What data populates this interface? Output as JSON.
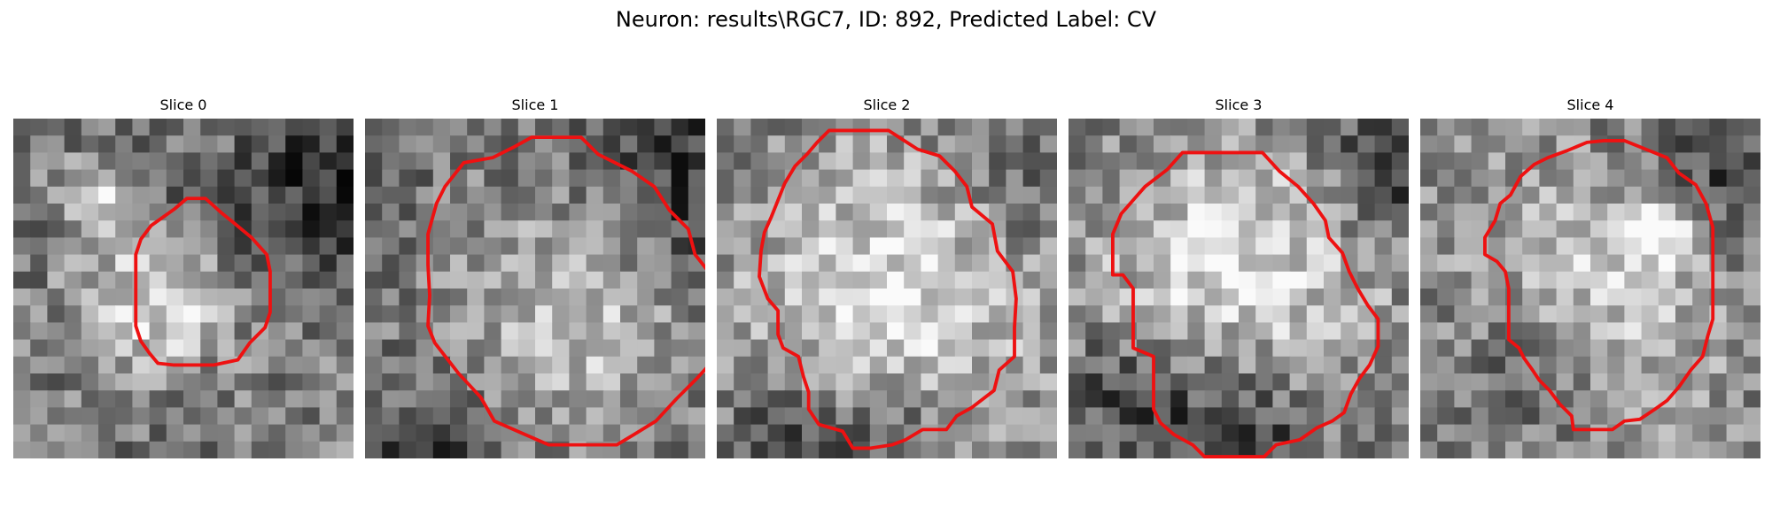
{
  "figure": {
    "title": "Neuron: results\\RGC7, ID: 892, Predicted Label: CV"
  },
  "colors": {
    "outline": "#ee1111"
  },
  "slices": [
    {
      "title": "Slice 0",
      "seed": 11,
      "base": 120,
      "contrast": 110,
      "bright": [
        [
          4.6,
          4.6,
          1.3,
          1.4
        ],
        [
          8.4,
          10.6,
          3.0,
          1.5
        ],
        [
          24.0,
          16.0,
          3.0,
          1.2
        ]
      ],
      "dark": [
        [
          19.0,
          4.0,
          3.2,
          1.1
        ],
        [
          11.5,
          6.5,
          3.2,
          0.45
        ],
        [
          20.0,
          28.0,
          3.5,
          0.6
        ]
      ],
      "outline": [
        [
          10.2,
          4.7
        ],
        [
          11.3,
          4.7
        ],
        [
          12.3,
          5.6
        ],
        [
          12.8,
          6.0
        ],
        [
          14.0,
          7.0
        ],
        [
          14.9,
          8.0
        ],
        [
          15.1,
          9.0
        ],
        [
          15.1,
          11.4
        ],
        [
          14.8,
          12.3
        ],
        [
          13.9,
          13.2
        ],
        [
          13.2,
          14.2
        ],
        [
          11.8,
          14.5
        ],
        [
          9.9,
          14.5
        ],
        [
          9.4,
          14.5
        ],
        [
          8.5,
          14.4
        ],
        [
          8.0,
          13.8
        ],
        [
          7.5,
          13.1
        ],
        [
          7.2,
          12.2
        ],
        [
          7.2,
          10.4
        ],
        [
          7.2,
          8.0
        ],
        [
          7.5,
          7.1
        ],
        [
          8.1,
          6.3
        ],
        [
          9.5,
          5.3
        ]
      ]
    },
    {
      "title": "Slice 1",
      "seed": 23,
      "base": 118,
      "contrast": 105,
      "bright": [
        [
          12.5,
          11.5,
          5.8,
          1.6
        ]
      ],
      "dark": [
        [
          19.0,
          4.0,
          4.0,
          0.9
        ],
        [
          4.0,
          21.0,
          3.0,
          0.8
        ],
        [
          12.5,
          11.5,
          8.5,
          0.55
        ]
      ],
      "outline": [
        [
          9.8,
          1.1
        ],
        [
          12.7,
          1.1
        ],
        [
          13.7,
          2.1
        ],
        [
          15.7,
          3.1
        ],
        [
          17.0,
          4.0
        ],
        [
          17.9,
          5.4
        ],
        [
          19.0,
          6.5
        ],
        [
          19.4,
          8.0
        ],
        [
          20.5,
          9.4
        ],
        [
          20.9,
          11.0
        ],
        [
          20.9,
          13.4
        ],
        [
          20.5,
          14.2
        ],
        [
          19.5,
          15.3
        ],
        [
          18.3,
          16.5
        ],
        [
          17.1,
          17.8
        ],
        [
          15.8,
          18.6
        ],
        [
          14.8,
          19.2
        ],
        [
          12.6,
          19.2
        ],
        [
          10.8,
          19.2
        ],
        [
          9.2,
          18.5
        ],
        [
          7.6,
          17.8
        ],
        [
          6.8,
          16.4
        ],
        [
          5.5,
          15.0
        ],
        [
          4.1,
          13.2
        ],
        [
          3.7,
          12.2
        ],
        [
          3.8,
          10.4
        ],
        [
          3.7,
          8.6
        ],
        [
          3.7,
          6.8
        ],
        [
          4.2,
          5.0
        ],
        [
          4.7,
          4.0
        ],
        [
          5.8,
          2.6
        ],
        [
          7.5,
          2.3
        ],
        [
          8.7,
          1.7
        ]
      ]
    },
    {
      "title": "Slice 2",
      "seed": 37,
      "base": 122,
      "contrast": 108,
      "bright": [
        [
          10.0,
          11.0,
          6.5,
          1.4
        ]
      ],
      "dark": [
        [
          18.5,
          3.5,
          3.0,
          0.6
        ],
        [
          9.5,
          19.0,
          3.5,
          0.9
        ],
        [
          4.0,
          19.0,
          2.5,
          0.9
        ]
      ],
      "outline": [
        [
          6.6,
          0.7
        ],
        [
          10.1,
          0.7
        ],
        [
          11.8,
          1.8
        ],
        [
          13.1,
          2.2
        ],
        [
          14.0,
          3.1
        ],
        [
          14.7,
          4.0
        ],
        [
          15.0,
          5.2
        ],
        [
          16.2,
          6.2
        ],
        [
          16.5,
          7.8
        ],
        [
          17.4,
          9.0
        ],
        [
          17.6,
          10.6
        ],
        [
          17.5,
          12.3
        ],
        [
          17.5,
          14.0
        ],
        [
          16.6,
          14.8
        ],
        [
          16.3,
          16.0
        ],
        [
          15.0,
          17.0
        ],
        [
          14.1,
          17.5
        ],
        [
          13.5,
          18.3
        ],
        [
          12.1,
          18.3
        ],
        [
          11.1,
          18.9
        ],
        [
          10.3,
          19.2
        ],
        [
          9.0,
          19.4
        ],
        [
          8.0,
          19.4
        ],
        [
          7.4,
          18.4
        ],
        [
          6.0,
          18.0
        ],
        [
          5.4,
          17.1
        ],
        [
          5.4,
          16.1
        ],
        [
          5.1,
          15.2
        ],
        [
          4.8,
          14.0
        ],
        [
          3.9,
          13.5
        ],
        [
          3.6,
          12.7
        ],
        [
          3.6,
          11.3
        ],
        [
          3.0,
          10.6
        ],
        [
          2.5,
          9.3
        ],
        [
          2.6,
          7.8
        ],
        [
          2.8,
          6.7
        ],
        [
          3.2,
          5.8
        ],
        [
          3.6,
          4.8
        ],
        [
          4.0,
          3.8
        ],
        [
          4.6,
          2.8
        ],
        [
          5.3,
          2.1
        ],
        [
          5.9,
          1.4
        ]
      ]
    },
    {
      "title": "Slice 3",
      "seed": 53,
      "base": 115,
      "contrast": 112,
      "bright": [
        [
          10.0,
          10.0,
          6.5,
          1.5
        ]
      ],
      "dark": [
        [
          19.5,
          3.0,
          3.0,
          1.0
        ],
        [
          9.5,
          18.0,
          4.0,
          1.3
        ],
        [
          3.0,
          15.5,
          2.5,
          0.7
        ]
      ],
      "outline": [
        [
          6.7,
          2.0
        ],
        [
          11.4,
          2.0
        ],
        [
          12.4,
          3.1
        ],
        [
          13.5,
          4.0
        ],
        [
          14.4,
          5.0
        ],
        [
          15.1,
          6.0
        ],
        [
          15.3,
          7.0
        ],
        [
          16.1,
          7.9
        ],
        [
          16.5,
          9.0
        ],
        [
          17.0,
          10.0
        ],
        [
          17.6,
          11.0
        ],
        [
          18.2,
          11.8
        ],
        [
          18.2,
          13.4
        ],
        [
          17.7,
          14.5
        ],
        [
          17.1,
          15.3
        ],
        [
          16.6,
          16.2
        ],
        [
          16.2,
          17.3
        ],
        [
          15.5,
          17.8
        ],
        [
          14.6,
          18.2
        ],
        [
          13.6,
          18.9
        ],
        [
          12.2,
          19.2
        ],
        [
          11.5,
          19.9
        ],
        [
          10.0,
          19.9
        ],
        [
          9.4,
          19.9
        ],
        [
          8.0,
          19.9
        ],
        [
          7.3,
          19.2
        ],
        [
          6.2,
          18.6
        ],
        [
          5.4,
          17.9
        ],
        [
          5.0,
          17.1
        ],
        [
          5.0,
          16.0
        ],
        [
          5.0,
          14.0
        ],
        [
          3.8,
          13.5
        ],
        [
          3.8,
          12.0
        ],
        [
          3.8,
          10.0
        ],
        [
          3.2,
          9.2
        ],
        [
          2.6,
          9.2
        ],
        [
          2.6,
          8.0
        ],
        [
          2.6,
          6.8
        ],
        [
          3.1,
          5.6
        ],
        [
          3.8,
          4.8
        ],
        [
          4.5,
          4.0
        ],
        [
          5.8,
          3.0
        ]
      ]
    },
    {
      "title": "Slice 4",
      "seed": 71,
      "base": 125,
      "contrast": 105,
      "bright": [
        [
          10.0,
          10.5,
          5.5,
          1.3
        ],
        [
          14.0,
          6.5,
          1.4,
          1.4
        ]
      ],
      "dark": [
        [
          17.5,
          3.0,
          3.5,
          0.9
        ],
        [
          7.0,
          14.0,
          3.5,
          0.9
        ]
      ],
      "outline": [
        [
          10.8,
          1.3
        ],
        [
          12.0,
          1.3
        ],
        [
          13.5,
          1.9
        ],
        [
          14.5,
          2.3
        ],
        [
          15.2,
          3.2
        ],
        [
          16.2,
          3.9
        ],
        [
          16.8,
          5.0
        ],
        [
          17.2,
          6.4
        ],
        [
          17.2,
          8.0
        ],
        [
          17.2,
          10.0
        ],
        [
          17.2,
          11.8
        ],
        [
          16.9,
          12.8
        ],
        [
          16.6,
          14.0
        ],
        [
          15.9,
          14.8
        ],
        [
          15.2,
          15.8
        ],
        [
          14.5,
          16.6
        ],
        [
          13.8,
          17.1
        ],
        [
          12.9,
          17.7
        ],
        [
          12.0,
          17.8
        ],
        [
          11.3,
          18.3
        ],
        [
          10.5,
          18.3
        ],
        [
          9.0,
          18.3
        ],
        [
          8.9,
          17.5
        ],
        [
          8.2,
          16.8
        ],
        [
          7.6,
          16.0
        ],
        [
          7.0,
          15.4
        ],
        [
          6.6,
          14.8
        ],
        [
          6.1,
          14.1
        ],
        [
          5.8,
          13.5
        ],
        [
          5.2,
          13.0
        ],
        [
          5.2,
          12.0
        ],
        [
          5.2,
          10.0
        ],
        [
          5.0,
          9.0
        ],
        [
          4.5,
          8.4
        ],
        [
          3.8,
          8.0
        ],
        [
          3.8,
          7.0
        ],
        [
          4.4,
          6.0
        ],
        [
          4.7,
          5.0
        ],
        [
          5.3,
          4.5
        ],
        [
          5.9,
          3.4
        ],
        [
          6.7,
          2.7
        ],
        [
          7.5,
          2.3
        ],
        [
          8.6,
          1.9
        ],
        [
          9.8,
          1.4
        ]
      ]
    }
  ]
}
